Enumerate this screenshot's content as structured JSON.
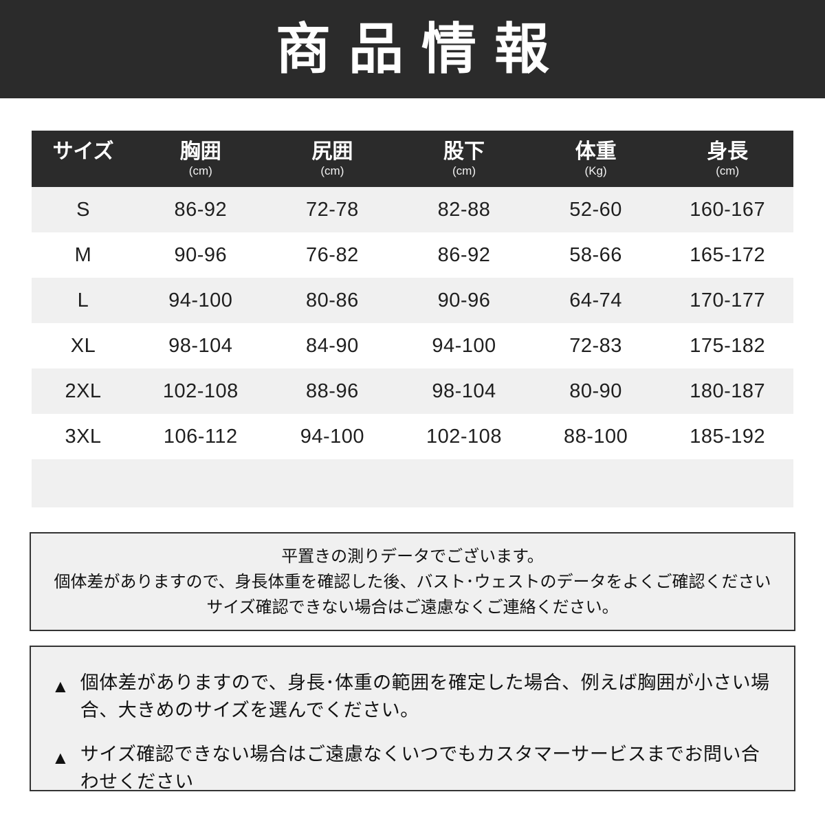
{
  "page": {
    "title": "商品情報"
  },
  "size_table": {
    "headers": [
      {
        "label": "サイズ",
        "unit": ""
      },
      {
        "label": "胸囲",
        "unit": "(cm)"
      },
      {
        "label": "尻囲",
        "unit": "(cm)"
      },
      {
        "label": "股下",
        "unit": "(cm)"
      },
      {
        "label": "体重",
        "unit": "(Kg)"
      },
      {
        "label": "身長",
        "unit": "(cm)"
      }
    ],
    "rows": [
      [
        "S",
        "86-92",
        "72-78",
        "82-88",
        "52-60",
        "160-167"
      ],
      [
        "M",
        "90-96",
        "76-82",
        "86-92",
        "58-66",
        "165-172"
      ],
      [
        "L",
        "94-100",
        "80-86",
        "90-96",
        "64-74",
        "170-177"
      ],
      [
        "XL",
        "98-104",
        "84-90",
        "94-100",
        "72-83",
        "175-182"
      ],
      [
        "2XL",
        "102-108",
        "88-96",
        "98-104",
        "80-90",
        "180-187"
      ],
      [
        "3XL",
        "106-112",
        "94-100",
        "102-108",
        "88-100",
        "185-192"
      ]
    ]
  },
  "measurement_note": {
    "lines": [
      "平置きの測りデータでございます。",
      "個体差がありますので、身長体重を確認した後、バスト･ウェストのデータをよくご確認ください",
      "サイズ確認できない場合はご遠慮なくご連絡ください。"
    ]
  },
  "warnings": {
    "bullet_icon": "▲",
    "items": [
      "個体差がありますので、身長･体重の範囲を確定した場合、例えば胸囲が小さい場合、大きめのサイズを選んでください。",
      "サイズ確認できない場合はご遠慮なくいつでもカスタマーサービスまでお問い合わせください"
    ]
  },
  "colors": {
    "banner_bg": "#2b2b2b",
    "table_header_bg": "#2b2b2b",
    "stripe_bg": "#f0f0f0",
    "note_bg": "#f0f0f0",
    "border": "#333333",
    "text": "#1f1f1f",
    "inverse_text": "#ffffff"
  }
}
